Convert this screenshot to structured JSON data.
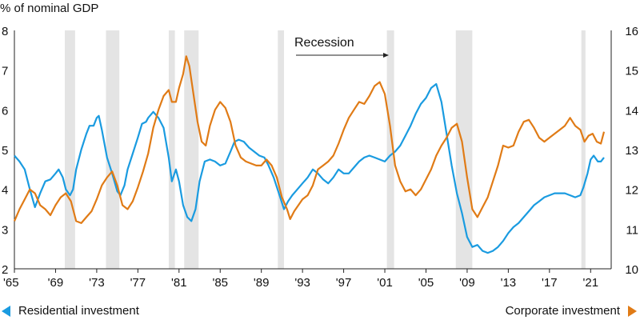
{
  "chart_data": {
    "type": "line",
    "left_axis_unit": "% of nominal GDP",
    "left_ylim": [
      2,
      8
    ],
    "left_ticks": [
      2,
      3,
      4,
      5,
      6,
      7,
      8
    ],
    "right_ylim": [
      10,
      16
    ],
    "right_ticks": [
      10,
      11,
      12,
      13,
      14,
      15,
      16
    ],
    "xlim": [
      1965,
      2023
    ],
    "x_ticks": [
      1965,
      1969,
      1973,
      1977,
      1981,
      1985,
      1989,
      1993,
      1997,
      2001,
      2005,
      2009,
      2013,
      2017,
      2021
    ],
    "x_tick_labels": [
      "'65",
      "'69",
      "'73",
      "'77",
      "'81",
      "'85",
      "'89",
      "'93",
      "'97",
      "'01",
      "'05",
      "'09",
      "'13",
      "'17",
      "'21"
    ],
    "annotation": "Recession",
    "recessions": [
      [
        1969.9,
        1970.9
      ],
      [
        1973.9,
        1975.2
      ],
      [
        1980.0,
        1980.6
      ],
      [
        1981.5,
        1982.9
      ],
      [
        1990.6,
        1991.2
      ],
      [
        2001.2,
        2001.9
      ],
      [
        2007.9,
        2009.5
      ],
      [
        2020.1,
        2020.5
      ]
    ],
    "grid": false,
    "series": [
      {
        "name": "Residential investment",
        "axis": "left",
        "color": "#1a9be0",
        "points": [
          [
            1965,
            4.85
          ],
          [
            1965.5,
            4.7
          ],
          [
            1966,
            4.5
          ],
          [
            1966.5,
            4.0
          ],
          [
            1967,
            3.55
          ],
          [
            1967.5,
            3.9
          ],
          [
            1968,
            4.2
          ],
          [
            1968.5,
            4.25
          ],
          [
            1969,
            4.4
          ],
          [
            1969.3,
            4.5
          ],
          [
            1969.7,
            4.3
          ],
          [
            1970,
            4.0
          ],
          [
            1970.4,
            3.85
          ],
          [
            1970.7,
            4.0
          ],
          [
            1971,
            4.5
          ],
          [
            1971.5,
            5.0
          ],
          [
            1972,
            5.4
          ],
          [
            1972.3,
            5.6
          ],
          [
            1972.7,
            5.6
          ],
          [
            1973,
            5.8
          ],
          [
            1973.2,
            5.85
          ],
          [
            1973.5,
            5.5
          ],
          [
            1974,
            4.8
          ],
          [
            1974.5,
            4.4
          ],
          [
            1975,
            3.95
          ],
          [
            1975.3,
            3.85
          ],
          [
            1975.7,
            4.1
          ],
          [
            1976,
            4.5
          ],
          [
            1976.5,
            4.9
          ],
          [
            1977,
            5.3
          ],
          [
            1977.4,
            5.65
          ],
          [
            1977.8,
            5.7
          ],
          [
            1978,
            5.8
          ],
          [
            1978.5,
            5.95
          ],
          [
            1979,
            5.8
          ],
          [
            1979.5,
            5.55
          ],
          [
            1980,
            4.8
          ],
          [
            1980.3,
            4.2
          ],
          [
            1980.7,
            4.5
          ],
          [
            1981,
            4.2
          ],
          [
            1981.4,
            3.6
          ],
          [
            1981.8,
            3.3
          ],
          [
            1982.2,
            3.2
          ],
          [
            1982.6,
            3.5
          ],
          [
            1983,
            4.2
          ],
          [
            1983.5,
            4.7
          ],
          [
            1984,
            4.75
          ],
          [
            1984.5,
            4.7
          ],
          [
            1985,
            4.6
          ],
          [
            1985.5,
            4.65
          ],
          [
            1986,
            4.95
          ],
          [
            1986.4,
            5.2
          ],
          [
            1986.8,
            5.25
          ],
          [
            1987.3,
            5.2
          ],
          [
            1987.8,
            5.05
          ],
          [
            1988.3,
            4.95
          ],
          [
            1988.8,
            4.85
          ],
          [
            1989.3,
            4.8
          ],
          [
            1989.7,
            4.6
          ],
          [
            1990.2,
            4.3
          ],
          [
            1990.7,
            3.9
          ],
          [
            1991.2,
            3.5
          ],
          [
            1991.6,
            3.7
          ],
          [
            1992,
            3.85
          ],
          [
            1992.5,
            4.0
          ],
          [
            1993,
            4.15
          ],
          [
            1993.5,
            4.3
          ],
          [
            1994,
            4.5
          ],
          [
            1994.5,
            4.4
          ],
          [
            1995,
            4.25
          ],
          [
            1995.5,
            4.15
          ],
          [
            1996,
            4.3
          ],
          [
            1996.5,
            4.5
          ],
          [
            1997,
            4.4
          ],
          [
            1997.5,
            4.4
          ],
          [
            1998,
            4.55
          ],
          [
            1998.5,
            4.7
          ],
          [
            1999,
            4.8
          ],
          [
            1999.5,
            4.85
          ],
          [
            2000,
            4.8
          ],
          [
            2000.5,
            4.75
          ],
          [
            2001,
            4.7
          ],
          [
            2001.5,
            4.85
          ],
          [
            2002,
            4.95
          ],
          [
            2002.5,
            5.1
          ],
          [
            2003,
            5.35
          ],
          [
            2003.5,
            5.6
          ],
          [
            2004,
            5.9
          ],
          [
            2004.5,
            6.15
          ],
          [
            2005,
            6.3
          ],
          [
            2005.5,
            6.55
          ],
          [
            2006,
            6.65
          ],
          [
            2006.5,
            6.2
          ],
          [
            2007,
            5.4
          ],
          [
            2007.5,
            4.6
          ],
          [
            2008,
            3.9
          ],
          [
            2008.5,
            3.4
          ],
          [
            2009,
            2.8
          ],
          [
            2009.5,
            2.55
          ],
          [
            2010,
            2.6
          ],
          [
            2010.5,
            2.45
          ],
          [
            2011,
            2.4
          ],
          [
            2011.5,
            2.45
          ],
          [
            2012,
            2.55
          ],
          [
            2012.5,
            2.7
          ],
          [
            2013,
            2.9
          ],
          [
            2013.5,
            3.05
          ],
          [
            2014,
            3.15
          ],
          [
            2014.5,
            3.3
          ],
          [
            2015,
            3.45
          ],
          [
            2015.5,
            3.6
          ],
          [
            2016,
            3.7
          ],
          [
            2016.5,
            3.8
          ],
          [
            2017,
            3.85
          ],
          [
            2017.5,
            3.9
          ],
          [
            2018,
            3.9
          ],
          [
            2018.5,
            3.9
          ],
          [
            2019,
            3.85
          ],
          [
            2019.5,
            3.8
          ],
          [
            2020,
            3.85
          ],
          [
            2020.3,
            4.05
          ],
          [
            2020.7,
            4.4
          ],
          [
            2021,
            4.75
          ],
          [
            2021.3,
            4.85
          ],
          [
            2021.7,
            4.7
          ],
          [
            2022,
            4.7
          ],
          [
            2022.3,
            4.8
          ]
        ]
      },
      {
        "name": "Corporate investment",
        "axis": "right",
        "color": "#e07b16",
        "points": [
          [
            1965,
            11.2
          ],
          [
            1965.5,
            11.5
          ],
          [
            1966,
            11.75
          ],
          [
            1966.5,
            12.0
          ],
          [
            1967,
            11.9
          ],
          [
            1967.5,
            11.6
          ],
          [
            1968,
            11.5
          ],
          [
            1968.5,
            11.35
          ],
          [
            1969,
            11.6
          ],
          [
            1969.5,
            11.8
          ],
          [
            1970,
            11.9
          ],
          [
            1970.5,
            11.7
          ],
          [
            1971,
            11.2
          ],
          [
            1971.5,
            11.15
          ],
          [
            1972,
            11.3
          ],
          [
            1972.5,
            11.45
          ],
          [
            1973,
            11.75
          ],
          [
            1973.5,
            12.1
          ],
          [
            1974,
            12.3
          ],
          [
            1974.5,
            12.45
          ],
          [
            1975,
            12.1
          ],
          [
            1975.5,
            11.6
          ],
          [
            1976,
            11.5
          ],
          [
            1976.5,
            11.7
          ],
          [
            1977,
            12.05
          ],
          [
            1977.5,
            12.45
          ],
          [
            1978,
            12.9
          ],
          [
            1978.5,
            13.55
          ],
          [
            1979,
            14.0
          ],
          [
            1979.5,
            14.35
          ],
          [
            1980,
            14.5
          ],
          [
            1980.3,
            14.2
          ],
          [
            1980.7,
            14.2
          ],
          [
            1981,
            14.55
          ],
          [
            1981.4,
            14.9
          ],
          [
            1981.7,
            15.35
          ],
          [
            1982,
            15.1
          ],
          [
            1982.4,
            14.4
          ],
          [
            1982.8,
            13.7
          ],
          [
            1983.2,
            13.2
          ],
          [
            1983.6,
            13.1
          ],
          [
            1984,
            13.6
          ],
          [
            1984.5,
            14.0
          ],
          [
            1985,
            14.2
          ],
          [
            1985.5,
            14.05
          ],
          [
            1986,
            13.7
          ],
          [
            1986.5,
            13.1
          ],
          [
            1987,
            12.8
          ],
          [
            1987.5,
            12.7
          ],
          [
            1988,
            12.65
          ],
          [
            1988.5,
            12.6
          ],
          [
            1989,
            12.6
          ],
          [
            1989.5,
            12.75
          ],
          [
            1990,
            12.6
          ],
          [
            1990.5,
            12.3
          ],
          [
            1991,
            11.8
          ],
          [
            1991.5,
            11.5
          ],
          [
            1991.8,
            11.25
          ],
          [
            1992.2,
            11.45
          ],
          [
            1992.6,
            11.6
          ],
          [
            1993,
            11.75
          ],
          [
            1993.5,
            11.85
          ],
          [
            1994,
            12.1
          ],
          [
            1994.5,
            12.5
          ],
          [
            1995,
            12.6
          ],
          [
            1995.5,
            12.7
          ],
          [
            1996,
            12.85
          ],
          [
            1996.5,
            13.15
          ],
          [
            1997,
            13.5
          ],
          [
            1997.5,
            13.8
          ],
          [
            1998,
            14.0
          ],
          [
            1998.5,
            14.2
          ],
          [
            1999,
            14.15
          ],
          [
            1999.5,
            14.35
          ],
          [
            2000,
            14.6
          ],
          [
            2000.5,
            14.7
          ],
          [
            2001,
            14.4
          ],
          [
            2001.5,
            13.6
          ],
          [
            2002,
            12.6
          ],
          [
            2002.5,
            12.2
          ],
          [
            2003,
            11.95
          ],
          [
            2003.5,
            12.0
          ],
          [
            2004,
            11.85
          ],
          [
            2004.5,
            12.0
          ],
          [
            2005,
            12.25
          ],
          [
            2005.5,
            12.5
          ],
          [
            2006,
            12.85
          ],
          [
            2006.5,
            13.1
          ],
          [
            2007,
            13.3
          ],
          [
            2007.5,
            13.55
          ],
          [
            2008,
            13.65
          ],
          [
            2008.5,
            13.2
          ],
          [
            2009,
            12.3
          ],
          [
            2009.5,
            11.5
          ],
          [
            2010,
            11.3
          ],
          [
            2010.5,
            11.55
          ],
          [
            2011,
            11.8
          ],
          [
            2011.5,
            12.2
          ],
          [
            2012,
            12.6
          ],
          [
            2012.5,
            13.1
          ],
          [
            2013,
            13.05
          ],
          [
            2013.5,
            13.1
          ],
          [
            2014,
            13.45
          ],
          [
            2014.5,
            13.7
          ],
          [
            2015,
            13.75
          ],
          [
            2015.5,
            13.55
          ],
          [
            2016,
            13.3
          ],
          [
            2016.5,
            13.2
          ],
          [
            2017,
            13.3
          ],
          [
            2017.5,
            13.4
          ],
          [
            2018,
            13.5
          ],
          [
            2018.5,
            13.6
          ],
          [
            2019,
            13.8
          ],
          [
            2019.5,
            13.6
          ],
          [
            2020,
            13.5
          ],
          [
            2020.4,
            13.2
          ],
          [
            2020.8,
            13.35
          ],
          [
            2021.2,
            13.4
          ],
          [
            2021.6,
            13.2
          ],
          [
            2022,
            13.15
          ],
          [
            2022.3,
            13.45
          ]
        ]
      }
    ],
    "legend": [
      {
        "label": "Residential investment",
        "position": "bottom-left",
        "marker": "left-triangle"
      },
      {
        "label": "Corporate investment",
        "position": "bottom-right",
        "marker": "right-triangle"
      }
    ]
  }
}
